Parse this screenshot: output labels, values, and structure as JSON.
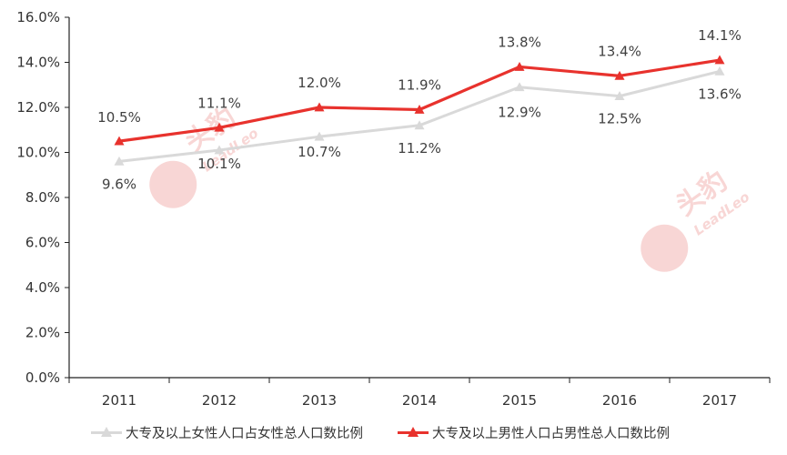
{
  "chart_data": {
    "type": "line",
    "title": "",
    "xlabel": "",
    "ylabel": "",
    "categories": [
      "2011",
      "2012",
      "2013",
      "2014",
      "2015",
      "2016",
      "2017"
    ],
    "ylim": [
      0,
      16
    ],
    "y_ticks": [
      "0.0%",
      "2.0%",
      "4.0%",
      "6.0%",
      "8.0%",
      "10.0%",
      "12.0%",
      "14.0%",
      "16.0%"
    ],
    "grid": false,
    "legend_position": "bottom",
    "series": [
      {
        "name": "大专及以上女性人口占女性总人口数比例",
        "values": [
          9.6,
          10.1,
          10.7,
          11.2,
          12.9,
          12.5,
          13.6
        ],
        "labels": [
          "9.6%",
          "10.1%",
          "10.7%",
          "11.2%",
          "12.9%",
          "12.5%",
          "13.6%"
        ],
        "color": "#d9d9d9",
        "marker": "triangle"
      },
      {
        "name": "大专及以上男性人口占男性总人口数比例",
        "values": [
          10.5,
          11.1,
          12.0,
          11.9,
          13.8,
          13.4,
          14.1
        ],
        "labels": [
          "10.5%",
          "11.1%",
          "12.0%",
          "11.9%",
          "13.8%",
          "13.4%",
          "14.1%"
        ],
        "color": "#e8322d",
        "marker": "triangle"
      }
    ]
  },
  "watermark": {
    "text": "头豹",
    "subtext": "LeadLeo",
    "color": "#f3b6b4"
  }
}
